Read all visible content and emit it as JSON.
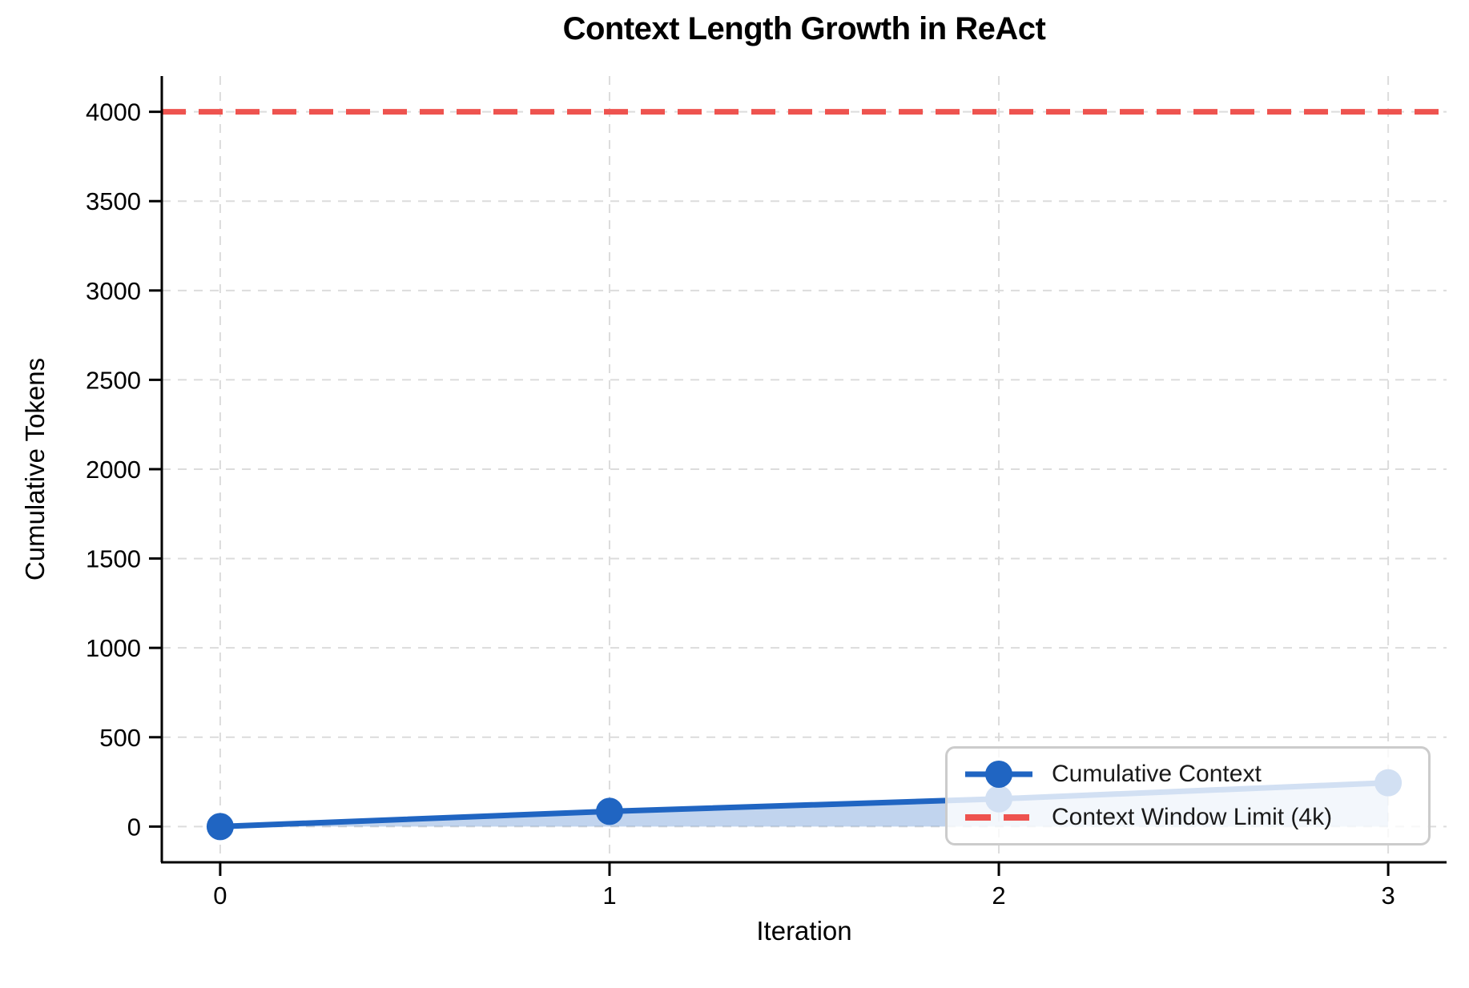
{
  "title": "Context Length Growth in ReAct",
  "axes": {
    "xlabel": "Iteration",
    "ylabel": "Cumulative Tokens"
  },
  "legend": {
    "items": [
      {
        "label": "Cumulative Context",
        "swatch": "blue-line-with-circle-marker"
      },
      {
        "label": "Context Window Limit (4k)",
        "swatch": "red-dashed-line"
      }
    ]
  },
  "colors": {
    "series_blue": "#2065c2",
    "series_fill": "rgba(32,101,194,0.28)",
    "limit_red": "#ee534f",
    "grid": "#dcdcdc",
    "spine": "#000000",
    "legend_border": "#cccccc"
  },
  "chart_data": {
    "type": "line",
    "title": "Context Length Growth in ReAct",
    "xlabel": "Iteration",
    "ylabel": "Cumulative Tokens",
    "x": [
      0,
      1,
      2,
      3
    ],
    "x_tick_labels": [
      "0",
      "1",
      "2",
      "3"
    ],
    "y_ticks": [
      0,
      500,
      1000,
      1500,
      2000,
      2500,
      3000,
      3500,
      4000
    ],
    "xlim": [
      -0.15,
      3.15
    ],
    "ylim": [
      -200,
      4200
    ],
    "grid": true,
    "grid_style": "dashed",
    "legend_position": "lower right",
    "series": [
      {
        "name": "Cumulative Context",
        "values": [
          0,
          85,
          155,
          245
        ],
        "marker": "circle",
        "filled_to_zero": true
      }
    ],
    "limit_line": {
      "name": "Context Window Limit (4k)",
      "value": 4000,
      "style": "dashed"
    }
  }
}
